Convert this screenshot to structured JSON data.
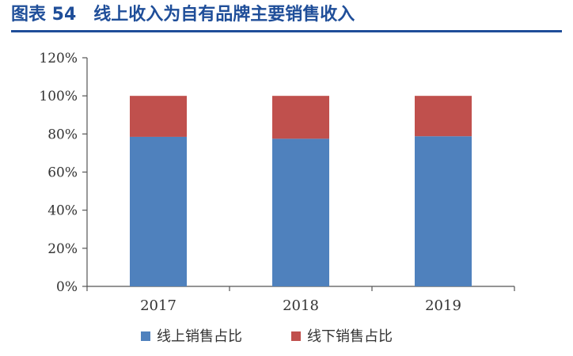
{
  "figure_title": "图表 54　线上收入为自有品牌主要销售收入",
  "colors": {
    "title": "#1f4e99",
    "online": "#4f81bd",
    "offline": "#c0504d",
    "axis": "#555555"
  },
  "chart_data": {
    "type": "bar",
    "stacked": true,
    "categories": [
      "2017",
      "2018",
      "2019"
    ],
    "series": [
      {
        "name": "线上销售占比",
        "values": [
          78.5,
          77.5,
          78.8
        ],
        "color": "#4f81bd"
      },
      {
        "name": "线下销售占比",
        "values": [
          21.5,
          22.5,
          21.2
        ],
        "color": "#c0504d"
      }
    ],
    "y_ticks": [
      "0%",
      "20%",
      "40%",
      "60%",
      "80%",
      "100%",
      "120%"
    ],
    "ylim": [
      0,
      120
    ],
    "grid": false,
    "legend_position": "bottom"
  }
}
